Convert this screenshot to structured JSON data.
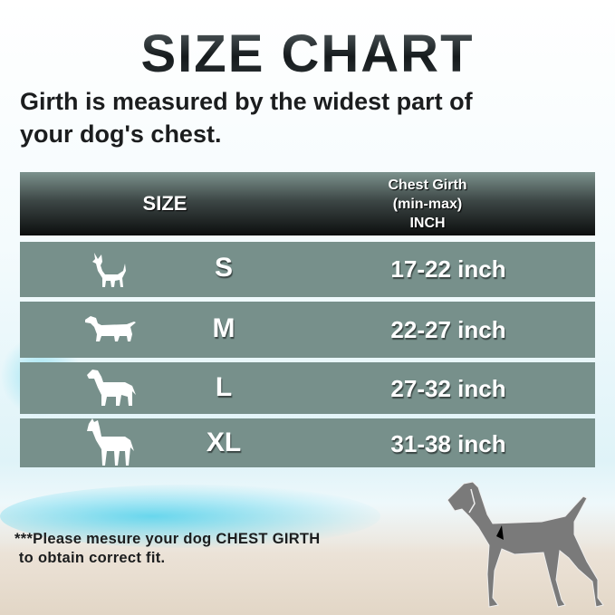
{
  "title": "SIZE CHART",
  "subtitle_line1": "Girth is measured by the widest part of",
  "subtitle_line2": "your dog's chest.",
  "table": {
    "headers": {
      "size": "SIZE",
      "girth_line1": "Chest Girth",
      "girth_line2": "(min-max)",
      "girth_line3": "INCH"
    },
    "rows": [
      {
        "icon": "chihuahua-icon",
        "size": "S",
        "girth": "17-22 inch"
      },
      {
        "icon": "dachshund-icon",
        "size": "M",
        "girth": "22-27 inch"
      },
      {
        "icon": "labrador-icon",
        "size": "L",
        "girth": "27-32 inch"
      },
      {
        "icon": "great-dane-icon",
        "size": "XL",
        "girth": "31-38 inch"
      }
    ]
  },
  "note_line1": "***Please mesure your dog CHEST GIRTH",
  "note_line2": " to obtain correct fit.",
  "colors": {
    "row_bg": "#77908b",
    "header_bottom": "#0c0e0e",
    "dog_gray": "#7a7a7a"
  }
}
